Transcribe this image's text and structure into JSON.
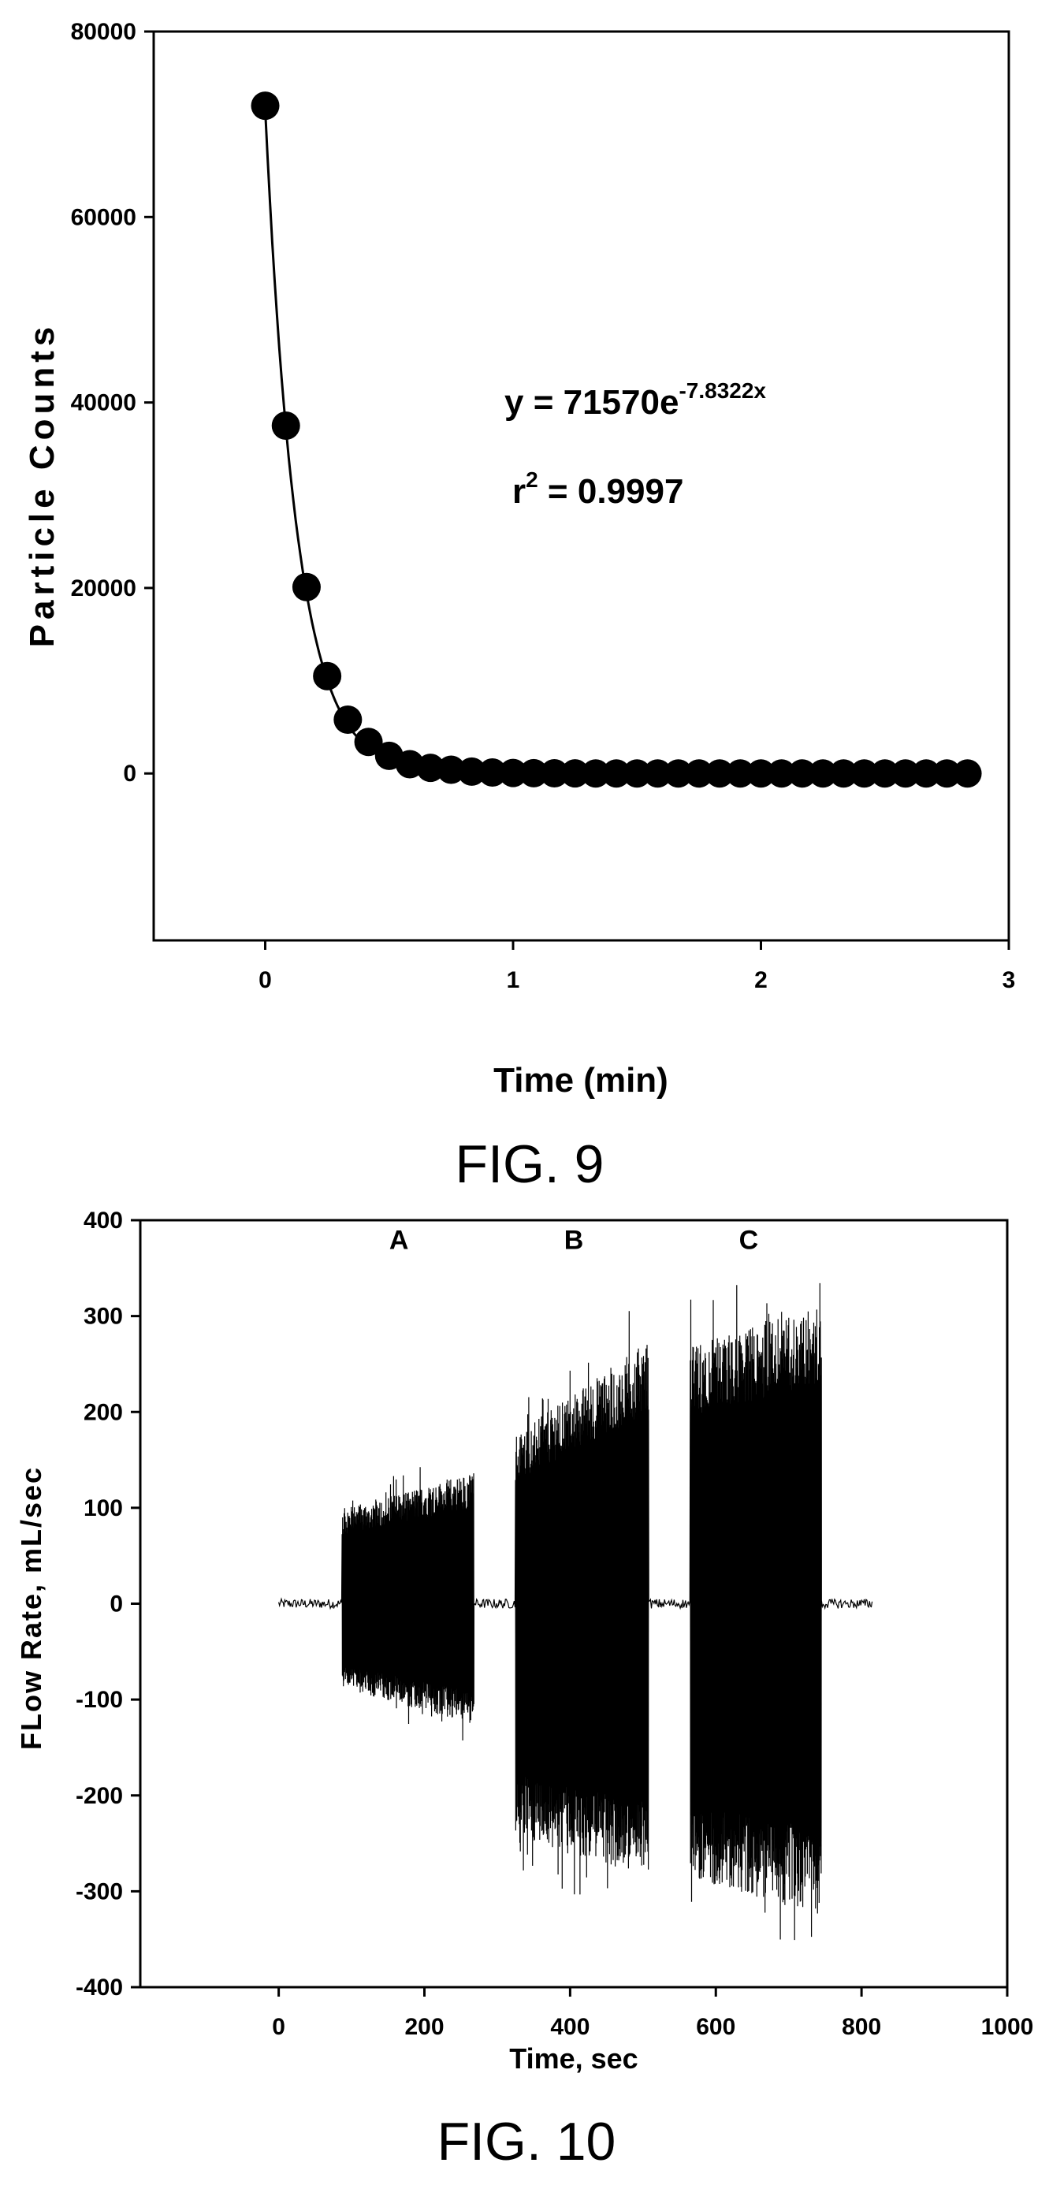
{
  "chart_data": [
    {
      "type": "scatter",
      "figure_label": "FIG. 9",
      "xlabel": "Time (min)",
      "ylabel": "Particle Counts",
      "xlim": [
        -0.45,
        3
      ],
      "ylim": [
        -18000,
        80000
      ],
      "x_ticks": [
        "0",
        "1",
        "2",
        "3"
      ],
      "y_ticks": [
        "0",
        "20000",
        "40000",
        "60000",
        "80000"
      ],
      "equation": {
        "lhs": "y = 71570e",
        "exponent": "-7.8322x"
      },
      "r_squared": {
        "base": "r",
        "power": "2",
        "value": " = 0.9997"
      },
      "fit": {
        "a": 71570,
        "b": -7.8322
      },
      "points": {
        "x": [
          0,
          0.0833,
          0.1667,
          0.25,
          0.3333,
          0.4167,
          0.5,
          0.5833,
          0.6667,
          0.75,
          0.8333,
          0.9167,
          1.0,
          1.0833,
          1.1667,
          1.25,
          1.3333,
          1.4167,
          1.5,
          1.5833,
          1.6667,
          1.75,
          1.8333,
          1.9167,
          2.0,
          2.0833,
          2.1667,
          2.25,
          2.3333,
          2.4167,
          2.5,
          2.5833,
          2.6667,
          2.75,
          2.8333
        ],
        "y": [
          72000,
          37500,
          20100,
          10500,
          5800,
          3400,
          1900,
          1000,
          600,
          400,
          200,
          100,
          50,
          30,
          20,
          10,
          0,
          0,
          0,
          0,
          0,
          0,
          0,
          0,
          0,
          0,
          0,
          0,
          0,
          0,
          0,
          0,
          0,
          0,
          0
        ]
      }
    },
    {
      "type": "line",
      "figure_label": "FIG. 10",
      "xlabel": "Time, sec",
      "ylabel": "FLow Rate, mL/sec",
      "xlim": [
        -190,
        1000
      ],
      "ylim": [
        -400,
        400
      ],
      "x_ticks": [
        "0",
        "200",
        "400",
        "600",
        "800",
        "1000"
      ],
      "y_ticks": [
        "-400",
        "-300",
        "-200",
        "-100",
        "0",
        "100",
        "200",
        "300",
        "400"
      ],
      "annotations": [
        {
          "text": "A",
          "x": 165,
          "y": 370
        },
        {
          "text": "B",
          "x": 405,
          "y": 370
        },
        {
          "text": "C",
          "x": 645,
          "y": 370
        }
      ],
      "segments": [
        {
          "label": "baseline",
          "x_range": [
            0,
            87
          ],
          "amplitude": 5
        },
        {
          "label": "A",
          "x_range": [
            87,
            268
          ],
          "upper": [
            90,
            125
          ],
          "lower": [
            -80,
            -115
          ]
        },
        {
          "label": "baseline",
          "x_range": [
            268,
            325
          ],
          "amplitude": 5
        },
        {
          "label": "B",
          "x_range": [
            325,
            508
          ],
          "upper": [
            160,
            250
          ],
          "lower": [
            -220,
            -260
          ]
        },
        {
          "label": "baseline",
          "x_range": [
            508,
            565
          ],
          "amplitude": 5
        },
        {
          "label": "C",
          "x_range": [
            565,
            745
          ],
          "upper": [
            245,
            285
          ],
          "lower": [
            -260,
            -295
          ]
        },
        {
          "label": "baseline",
          "x_range": [
            745,
            815
          ],
          "amplitude": 5
        }
      ]
    }
  ]
}
